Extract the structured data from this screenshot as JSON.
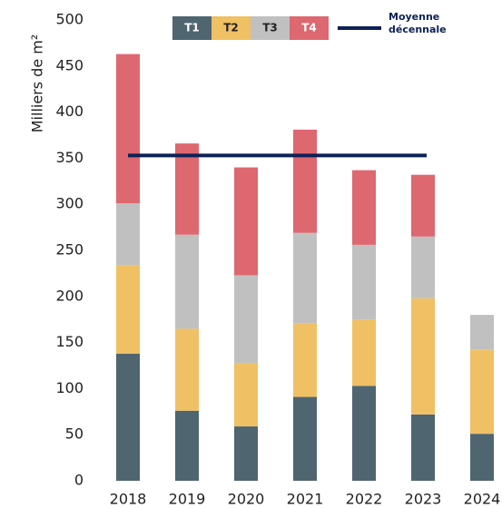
{
  "chart_data": {
    "type": "stacked_bar",
    "y_label": "Milliers de m²",
    "categories": [
      "2018",
      "2019",
      "2020",
      "2021",
      "2022",
      "2023",
      "2024"
    ],
    "series": [
      {
        "name": "T1",
        "color": "#4f6570",
        "values": [
          138,
          76,
          59,
          91,
          103,
          72,
          51
        ]
      },
      {
        "name": "T2",
        "color": "#f0c064",
        "values": [
          96,
          89,
          69,
          80,
          72,
          126,
          91
        ]
      },
      {
        "name": "T3",
        "color": "#c0c0c0",
        "values": [
          67,
          102,
          95,
          98,
          81,
          67,
          38
        ]
      },
      {
        "name": "T4",
        "color": "#dd6870",
        "values": [
          162,
          99,
          117,
          112,
          81,
          67,
          null
        ]
      }
    ],
    "average": {
      "name": "Moyenne décennale",
      "value": 353,
      "color": "#0c2157"
    },
    "ylim": [
      0,
      500
    ],
    "yticks": [
      0,
      50,
      100,
      150,
      200,
      250,
      300,
      350,
      400,
      450,
      500
    ],
    "grid": false
  }
}
